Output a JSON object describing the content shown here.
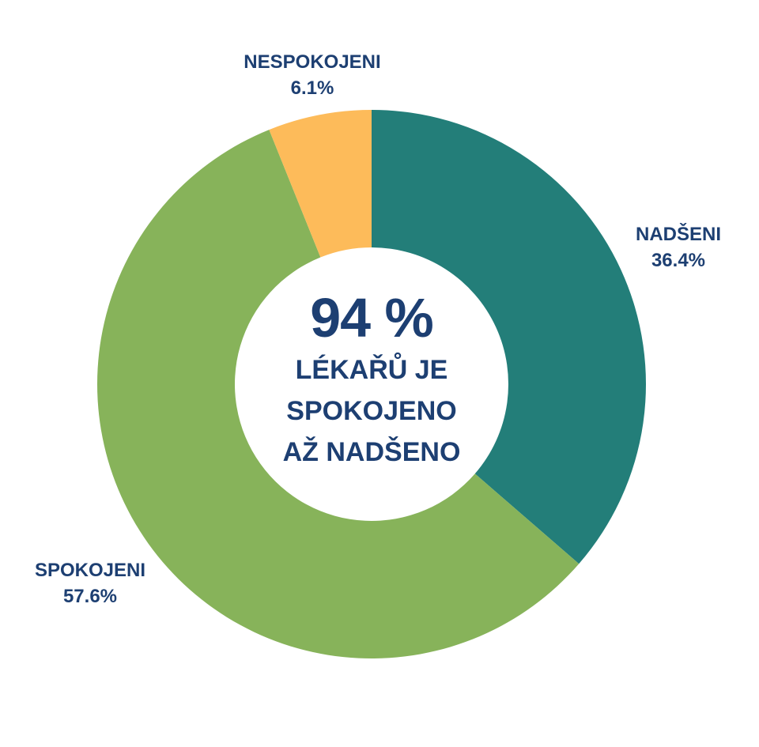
{
  "chart_data": {
    "type": "pie",
    "subtype": "donut",
    "title": "",
    "center_text": {
      "value": "94 %",
      "lines": [
        "LÉKAŘŮ JE",
        "SPOKOJENO",
        "AŽ NADŠENO"
      ]
    },
    "categories": [
      "NADŠENI",
      "SPOKOJENI",
      "NESPOKOJENI"
    ],
    "values": [
      36.4,
      57.6,
      6.1
    ],
    "value_labels": [
      "36.4%",
      "57.6%",
      "6.1%"
    ],
    "colors": [
      "#237e79",
      "#87b35a",
      "#fdbb5a"
    ],
    "start_angle": "12 o'clock, clockwise",
    "legend": "none (direct labels)"
  },
  "labels": {
    "nadseni": {
      "name": "NADŠENI",
      "pct": "36.4%"
    },
    "spokojeni": {
      "name": "SPOKOJENI",
      "pct": "57.6%"
    },
    "nespokojeni": {
      "name": "NESPOKOJENI",
      "pct": "6.1%"
    }
  },
  "center": {
    "value": "94 %",
    "line1": "LÉKAŘŮ JE",
    "line2": "SPOKOJENO",
    "line3": "AŽ NADŠENO"
  },
  "colors": {
    "text": "#1d3f72",
    "nadseni": "#237e79",
    "spokojeni": "#87b35a",
    "nespokojeni": "#fdbb5a"
  }
}
